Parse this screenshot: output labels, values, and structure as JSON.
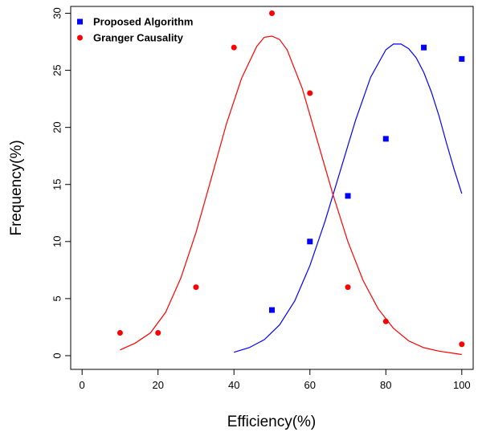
{
  "chart_data": {
    "type": "scatter",
    "xlabel": "Efficiency(%)",
    "ylabel": "Frequency(%)",
    "xlim": [
      -3,
      103
    ],
    "ylim": [
      -1.2,
      30.6
    ],
    "xticks": [
      0,
      20,
      40,
      60,
      80,
      100
    ],
    "yticks": [
      0,
      5,
      10,
      15,
      20,
      25,
      30
    ],
    "grid": false,
    "legend_position": "top-left",
    "series": [
      {
        "name": "Proposed Algorithm",
        "color": "#0000ff",
        "marker": "square",
        "points": [
          {
            "x": 50,
            "y": 4
          },
          {
            "x": 60,
            "y": 10
          },
          {
            "x": 70,
            "y": 14
          },
          {
            "x": 80,
            "y": 19
          },
          {
            "x": 90,
            "y": 27
          },
          {
            "x": 100,
            "y": 26
          }
        ],
        "curve": {
          "x": [
            40,
            44,
            48,
            52,
            56,
            60,
            64,
            68,
            72,
            76,
            80,
            82,
            84,
            86,
            88,
            90,
            92,
            94,
            96,
            98,
            100
          ],
          "y": [
            0.3,
            0.7,
            1.4,
            2.7,
            4.8,
            7.9,
            11.8,
            16.2,
            20.6,
            24.4,
            26.8,
            27.3,
            27.3,
            26.9,
            26.1,
            24.8,
            23.1,
            21.0,
            18.6,
            16.3,
            14.2
          ]
        }
      },
      {
        "name": "Granger Causality",
        "color": "#ff0000",
        "marker": "circle",
        "points": [
          {
            "x": 10,
            "y": 2
          },
          {
            "x": 20,
            "y": 2
          },
          {
            "x": 30,
            "y": 6
          },
          {
            "x": 40,
            "y": 27
          },
          {
            "x": 50,
            "y": 30
          },
          {
            "x": 60,
            "y": 23
          },
          {
            "x": 70,
            "y": 6
          },
          {
            "x": 80,
            "y": 3
          },
          {
            "x": 100,
            "y": 1
          }
        ],
        "curve": {
          "x": [
            10,
            14,
            18,
            22,
            26,
            30,
            34,
            38,
            42,
            46,
            48,
            50,
            52,
            54,
            58,
            62,
            66,
            70,
            74,
            78,
            82,
            86,
            90,
            94,
            98,
            100
          ],
          "y": [
            0.5,
            1.1,
            2.0,
            3.8,
            6.8,
            10.8,
            15.5,
            20.3,
            24.3,
            27.1,
            27.9,
            28.0,
            27.7,
            26.8,
            23.4,
            18.8,
            14.2,
            10.0,
            6.6,
            4.1,
            2.4,
            1.3,
            0.7,
            0.4,
            0.2,
            0.1
          ]
        }
      }
    ]
  }
}
